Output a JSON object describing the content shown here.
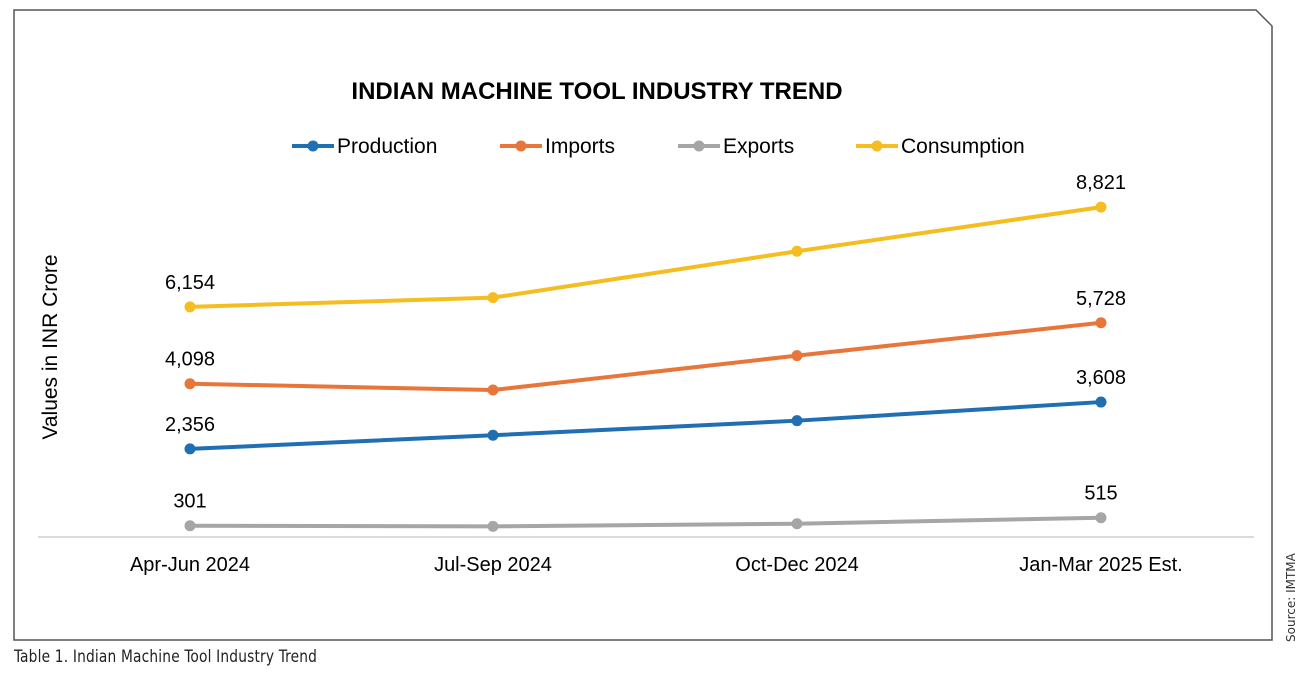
{
  "chart_data": {
    "type": "line",
    "title": "INDIAN MACHINE TOOL INDUSTRY TREND",
    "ylabel": "Values in INR Crore",
    "xlabel": "",
    "categories": [
      "Apr-Jun 2024",
      "Jul-Sep 2024",
      "Oct-Dec 2024",
      "Jan-Mar 2025 Est."
    ],
    "ylim": [
      0,
      10000
    ],
    "grid": false,
    "legend_position": "top",
    "series": [
      {
        "name": "Production",
        "color": "#1f6fb2",
        "values": [
          2356,
          2720,
          3110,
          3608
        ],
        "labels": [
          "2,356",
          "",
          "",
          "3,608"
        ]
      },
      {
        "name": "Imports",
        "color": "#e8763a",
        "values": [
          4098,
          3930,
          4850,
          5728
        ],
        "labels": [
          "4,098",
          "",
          "",
          "5,728"
        ]
      },
      {
        "name": "Exports",
        "color": "#a6a6a6",
        "values": [
          301,
          285,
          355,
          515
        ],
        "labels": [
          "301",
          "",
          "",
          "515"
        ]
      },
      {
        "name": "Consumption",
        "color": "#f5bd1f",
        "values": [
          6154,
          6400,
          7640,
          8821
        ],
        "labels": [
          "6,154",
          "",
          "",
          "8,821"
        ]
      }
    ]
  },
  "caption": "Table 1. Indian Machine Tool Industry Trend",
  "source": "Source: IMTMA"
}
